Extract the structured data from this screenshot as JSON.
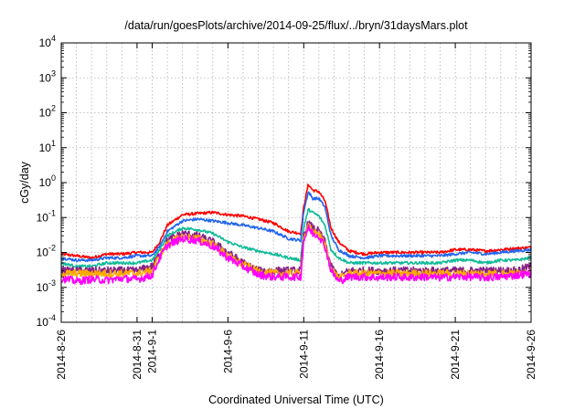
{
  "chart_data": {
    "type": "line",
    "title": "/data/run/goesPlots/archive/2014-09-25/flux/../bryn/31daysMars.plot",
    "xlabel": "Coordinated Universal Time (UTC)",
    "ylabel": "cGy/day",
    "x_start": "2014-08-26",
    "x_end": "2014-09-26",
    "xlim": [
      0,
      31
    ],
    "y_scale": "log",
    "ylim": [
      0.0001,
      10000
    ],
    "grid": true,
    "legend": "none",
    "x_ticks": [
      {
        "day": 0,
        "label": "2014-8-26"
      },
      {
        "day": 5,
        "label": "2014-8-31"
      },
      {
        "day": 6,
        "label": "2014-9-1"
      },
      {
        "day": 11,
        "label": "2014-9-6"
      },
      {
        "day": 16,
        "label": "2014-9-11"
      },
      {
        "day": 21,
        "label": "2014-9-16"
      },
      {
        "day": 26,
        "label": "2014-9-21"
      },
      {
        "day": 31,
        "label": "2014-9-26"
      }
    ],
    "y_ticks": [
      {
        "value": 0.0001,
        "base": "10",
        "exp": "-4"
      },
      {
        "value": 0.001,
        "base": "10",
        "exp": "-3"
      },
      {
        "value": 0.01,
        "base": "10",
        "exp": "-2"
      },
      {
        "value": 0.1,
        "base": "10",
        "exp": "-1"
      },
      {
        "value": 1,
        "base": "10",
        "exp": "0"
      },
      {
        "value": 10,
        "base": "10",
        "exp": "1"
      },
      {
        "value": 100,
        "base": "10",
        "exp": "2"
      },
      {
        "value": 1000,
        "base": "10",
        "exp": "3"
      },
      {
        "value": 10000,
        "base": "10",
        "exp": "4"
      }
    ],
    "series": [
      {
        "color": "#ff0000",
        "values": [
          [
            0,
            0.009
          ],
          [
            1,
            0.008
          ],
          [
            2,
            0.007
          ],
          [
            3,
            0.009
          ],
          [
            4,
            0.009
          ],
          [
            5,
            0.01
          ],
          [
            6,
            0.01
          ],
          [
            6.5,
            0.02
          ],
          [
            7,
            0.06
          ],
          [
            8,
            0.12
          ],
          [
            9,
            0.13
          ],
          [
            10,
            0.14
          ],
          [
            11,
            0.12
          ],
          [
            12,
            0.11
          ],
          [
            13,
            0.09
          ],
          [
            14,
            0.07
          ],
          [
            15,
            0.04
          ],
          [
            15.8,
            0.035
          ],
          [
            16,
            0.2
          ],
          [
            16.3,
            0.9
          ],
          [
            16.6,
            0.6
          ],
          [
            17,
            0.55
          ],
          [
            17.4,
            0.3
          ],
          [
            17.8,
            0.05
          ],
          [
            18.3,
            0.02
          ],
          [
            19,
            0.011
          ],
          [
            20,
            0.009
          ],
          [
            21,
            0.01
          ],
          [
            22,
            0.01
          ],
          [
            23,
            0.01
          ],
          [
            24,
            0.01
          ],
          [
            25,
            0.01
          ],
          [
            26,
            0.012
          ],
          [
            27,
            0.012
          ],
          [
            28,
            0.011
          ],
          [
            29,
            0.012
          ],
          [
            30,
            0.013
          ],
          [
            31,
            0.014
          ]
        ]
      },
      {
        "color": "#2266ee",
        "values": [
          [
            0,
            0.007
          ],
          [
            1,
            0.006
          ],
          [
            2,
            0.006
          ],
          [
            3,
            0.007
          ],
          [
            4,
            0.007
          ],
          [
            5,
            0.008
          ],
          [
            6,
            0.008
          ],
          [
            6.5,
            0.015
          ],
          [
            7,
            0.04
          ],
          [
            8,
            0.08
          ],
          [
            9,
            0.09
          ],
          [
            10,
            0.08
          ],
          [
            11,
            0.07
          ],
          [
            12,
            0.06
          ],
          [
            13,
            0.05
          ],
          [
            14,
            0.04
          ],
          [
            15,
            0.025
          ],
          [
            15.8,
            0.022
          ],
          [
            16,
            0.15
          ],
          [
            16.3,
            0.55
          ],
          [
            16.6,
            0.35
          ],
          [
            17,
            0.35
          ],
          [
            17.4,
            0.2
          ],
          [
            17.8,
            0.03
          ],
          [
            18.3,
            0.012
          ],
          [
            19,
            0.008
          ],
          [
            20,
            0.007
          ],
          [
            21,
            0.008
          ],
          [
            22,
            0.008
          ],
          [
            23,
            0.008
          ],
          [
            24,
            0.008
          ],
          [
            25,
            0.008
          ],
          [
            26,
            0.009
          ],
          [
            27,
            0.01
          ],
          [
            28,
            0.009
          ],
          [
            29,
            0.01
          ],
          [
            30,
            0.011
          ],
          [
            31,
            0.012
          ]
        ]
      },
      {
        "color": "#11bb99",
        "values": [
          [
            0,
            0.005
          ],
          [
            1,
            0.004
          ],
          [
            2,
            0.004
          ],
          [
            3,
            0.005
          ],
          [
            4,
            0.005
          ],
          [
            5,
            0.005
          ],
          [
            6,
            0.006
          ],
          [
            6.5,
            0.012
          ],
          [
            7,
            0.03
          ],
          [
            8,
            0.05
          ],
          [
            9,
            0.045
          ],
          [
            10,
            0.035
          ],
          [
            11,
            0.02
          ],
          [
            12,
            0.014
          ],
          [
            13,
            0.011
          ],
          [
            14,
            0.009
          ],
          [
            15,
            0.007
          ],
          [
            15.8,
            0.006
          ],
          [
            16,
            0.05
          ],
          [
            16.3,
            0.17
          ],
          [
            16.6,
            0.14
          ],
          [
            17,
            0.11
          ],
          [
            17.4,
            0.06
          ],
          [
            17.8,
            0.012
          ],
          [
            18.3,
            0.007
          ],
          [
            19,
            0.005
          ],
          [
            20,
            0.005
          ],
          [
            21,
            0.005
          ],
          [
            22,
            0.005
          ],
          [
            23,
            0.005
          ],
          [
            24,
            0.005
          ],
          [
            25,
            0.005
          ],
          [
            26,
            0.006
          ],
          [
            27,
            0.006
          ],
          [
            28,
            0.005
          ],
          [
            29,
            0.006
          ],
          [
            30,
            0.006
          ],
          [
            31,
            0.007
          ]
        ]
      },
      {
        "color": "#882288",
        "values": [
          [
            0,
            0.003
          ],
          [
            1,
            0.003
          ],
          [
            2,
            0.003
          ],
          [
            3,
            0.003
          ],
          [
            4,
            0.003
          ],
          [
            5,
            0.003
          ],
          [
            6,
            0.004
          ],
          [
            6.5,
            0.009
          ],
          [
            7,
            0.022
          ],
          [
            8,
            0.035
          ],
          [
            9,
            0.03
          ],
          [
            10,
            0.02
          ],
          [
            11,
            0.01
          ],
          [
            12,
            0.005
          ],
          [
            13,
            0.003
          ],
          [
            14,
            0.003
          ],
          [
            15,
            0.003
          ],
          [
            15.8,
            0.003
          ],
          [
            16,
            0.03
          ],
          [
            16.3,
            0.07
          ],
          [
            16.6,
            0.05
          ],
          [
            17,
            0.04
          ],
          [
            17.4,
            0.02
          ],
          [
            17.8,
            0.004
          ],
          [
            18.3,
            0.002
          ],
          [
            19,
            0.003
          ],
          [
            20,
            0.003
          ],
          [
            21,
            0.003
          ],
          [
            22,
            0.003
          ],
          [
            23,
            0.003
          ],
          [
            24,
            0.003
          ],
          [
            25,
            0.003
          ],
          [
            26,
            0.003
          ],
          [
            27,
            0.003
          ],
          [
            28,
            0.003
          ],
          [
            29,
            0.003
          ],
          [
            30,
            0.003
          ],
          [
            31,
            0.004
          ]
        ]
      },
      {
        "color": "#ffaa00",
        "values": [
          [
            0,
            0.0025
          ],
          [
            1,
            0.0025
          ],
          [
            2,
            0.0025
          ],
          [
            3,
            0.0025
          ],
          [
            4,
            0.0025
          ],
          [
            5,
            0.0025
          ],
          [
            6,
            0.003
          ],
          [
            6.5,
            0.008
          ],
          [
            7,
            0.018
          ],
          [
            8,
            0.028
          ],
          [
            9,
            0.025
          ],
          [
            10,
            0.017
          ],
          [
            11,
            0.008
          ],
          [
            12,
            0.0045
          ],
          [
            13,
            0.0028
          ],
          [
            14,
            0.0025
          ],
          [
            15,
            0.0025
          ],
          [
            15.8,
            0.0025
          ],
          [
            16,
            0.025
          ],
          [
            16.3,
            0.055
          ],
          [
            16.6,
            0.04
          ],
          [
            17,
            0.033
          ],
          [
            17.4,
            0.017
          ],
          [
            17.8,
            0.0035
          ],
          [
            18.3,
            0.0018
          ],
          [
            19,
            0.0025
          ],
          [
            20,
            0.0025
          ],
          [
            21,
            0.0025
          ],
          [
            22,
            0.0025
          ],
          [
            23,
            0.0025
          ],
          [
            24,
            0.0025
          ],
          [
            25,
            0.0025
          ],
          [
            26,
            0.0025
          ],
          [
            27,
            0.0025
          ],
          [
            28,
            0.0025
          ],
          [
            29,
            0.0025
          ],
          [
            30,
            0.0025
          ],
          [
            31,
            0.003
          ]
        ]
      },
      {
        "color": "#ff00ff",
        "values": [
          [
            0,
            0.0018
          ],
          [
            1,
            0.0015
          ],
          [
            2,
            0.0017
          ],
          [
            3,
            0.0016
          ],
          [
            4,
            0.0018
          ],
          [
            5,
            0.0017
          ],
          [
            6,
            0.0022
          ],
          [
            6.5,
            0.007
          ],
          [
            7,
            0.016
          ],
          [
            8,
            0.025
          ],
          [
            9,
            0.022
          ],
          [
            10,
            0.015
          ],
          [
            11,
            0.007
          ],
          [
            12,
            0.004
          ],
          [
            13,
            0.0023
          ],
          [
            14,
            0.002
          ],
          [
            15,
            0.002
          ],
          [
            15.8,
            0.002
          ],
          [
            16,
            0.022
          ],
          [
            16.3,
            0.05
          ],
          [
            16.6,
            0.035
          ],
          [
            17,
            0.03
          ],
          [
            17.4,
            0.015
          ],
          [
            17.8,
            0.003
          ],
          [
            18.3,
            0.0015
          ],
          [
            19,
            0.002
          ],
          [
            20,
            0.002
          ],
          [
            21,
            0.0019
          ],
          [
            22,
            0.002
          ],
          [
            23,
            0.0019
          ],
          [
            24,
            0.002
          ],
          [
            25,
            0.0019
          ],
          [
            26,
            0.002
          ],
          [
            27,
            0.002
          ],
          [
            28,
            0.0019
          ],
          [
            29,
            0.002
          ],
          [
            30,
            0.0022
          ],
          [
            31,
            0.0025
          ]
        ]
      }
    ]
  }
}
